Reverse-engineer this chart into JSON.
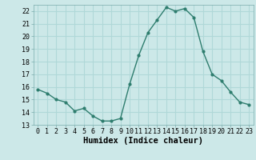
{
  "x": [
    0,
    1,
    2,
    3,
    4,
    5,
    6,
    7,
    8,
    9,
    10,
    11,
    12,
    13,
    14,
    15,
    16,
    17,
    18,
    19,
    20,
    21,
    22,
    23
  ],
  "y": [
    15.8,
    15.5,
    15.0,
    14.8,
    14.1,
    14.3,
    13.7,
    13.3,
    13.3,
    13.5,
    16.2,
    18.5,
    20.3,
    21.3,
    22.3,
    22.0,
    22.2,
    21.5,
    18.8,
    17.0,
    16.5,
    15.6,
    14.8,
    14.6
  ],
  "xlabel": "Humidex (Indice chaleur)",
  "ylim": [
    13,
    22.5
  ],
  "xlim": [
    -0.5,
    23.5
  ],
  "yticks": [
    13,
    14,
    15,
    16,
    17,
    18,
    19,
    20,
    21,
    22
  ],
  "xticks": [
    0,
    1,
    2,
    3,
    4,
    5,
    6,
    7,
    8,
    9,
    10,
    11,
    12,
    13,
    14,
    15,
    16,
    17,
    18,
    19,
    20,
    21,
    22,
    23
  ],
  "line_color": "#2e7d6e",
  "bg_color": "#cce8e8",
  "grid_color": "#b0d8d8",
  "marker": "o",
  "marker_size": 2.0,
  "line_width": 1.0,
  "tick_fontsize": 6.0,
  "xlabel_fontsize": 7.5
}
